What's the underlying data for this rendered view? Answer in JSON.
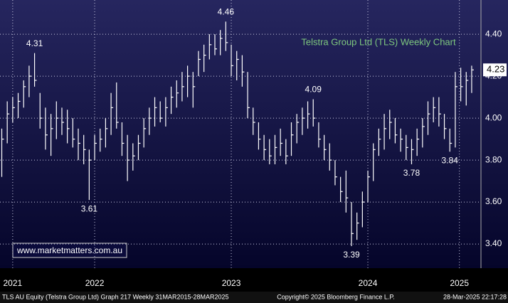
{
  "chart_data": {
    "type": "hlc",
    "title": "Telstra Group Ltd (TLS) Weekly Chart",
    "watermark": "www.marketmatters.com.au",
    "footer": [
      "TLS AU Equity (Telstra Group Ltd) Graph 217  Weekly 31MAR2015-28MAR2025",
      "Copyright© 2025 Bloomberg Finance L.P.",
      "28-Mar-2025 22:17:28"
    ],
    "x": [
      2021.82,
      2021.86,
      2021.9,
      2021.94,
      2021.98,
      2022.02,
      2022.06,
      2022.1,
      2022.14,
      2022.18,
      2022.22,
      2022.26,
      2022.3,
      2022.34,
      2022.38,
      2022.42,
      2022.46,
      2022.5,
      2022.54,
      2022.58,
      2022.62,
      2022.66,
      2022.7,
      2022.74,
      2022.78,
      2022.82,
      2022.86,
      2022.9,
      2022.94,
      2022.98,
      2023.02,
      2023.06,
      2023.1,
      2023.14,
      2023.18,
      2023.22,
      2023.26,
      2023.3,
      2023.34,
      2023.38,
      2023.42,
      2023.46,
      2023.5,
      2023.54,
      2023.58,
      2023.62,
      2023.66,
      2023.7,
      2023.74,
      2023.78,
      2023.82,
      2023.86,
      2023.9,
      2023.94,
      2023.98,
      2024.02,
      2024.06,
      2024.1,
      2024.14,
      2024.18,
      2024.22,
      2024.26,
      2024.3,
      2024.34,
      2024.38,
      2024.42,
      2024.46,
      2024.5,
      2024.54,
      2024.58,
      2024.62,
      2024.66,
      2024.7,
      2024.74,
      2024.78,
      2024.82,
      2024.86,
      2024.9,
      2024.94,
      2024.98,
      2025.02,
      2025.06,
      2025.1,
      2025.14,
      2025.18,
      2025.22,
      2025.26
    ],
    "high": [
      3.95,
      4.08,
      4.1,
      4.12,
      4.18,
      4.25,
      4.31,
      4.12,
      4.05,
      4.02,
      4.08,
      4.05,
      4.04,
      4.0,
      3.95,
      3.92,
      3.85,
      3.92,
      3.95,
      4.0,
      4.12,
      4.17,
      3.98,
      3.92,
      3.88,
      3.92,
      4.0,
      4.05,
      4.1,
      4.08,
      4.1,
      4.15,
      4.18,
      4.22,
      4.25,
      4.22,
      4.32,
      4.35,
      4.4,
      4.4,
      4.42,
      4.46,
      4.35,
      4.32,
      4.3,
      4.22,
      4.05,
      3.98,
      3.92,
      3.9,
      3.92,
      3.95,
      3.9,
      3.98,
      4.02,
      4.05,
      4.08,
      4.09,
      3.98,
      3.92,
      3.88,
      3.8,
      3.72,
      3.75,
      3.6,
      3.55,
      3.65,
      3.75,
      3.88,
      3.95,
      4.02,
      4.04,
      4.0,
      3.95,
      3.92,
      3.9,
      3.95,
      4.0,
      4.08,
      4.1,
      4.1,
      4.02,
      3.95,
      4.22,
      4.24,
      4.22,
      4.25
    ],
    "low": [
      3.72,
      3.88,
      3.98,
      4.0,
      4.05,
      4.1,
      4.15,
      3.95,
      3.85,
      3.82,
      3.9,
      3.92,
      3.88,
      3.86,
      3.8,
      3.78,
      3.61,
      3.8,
      3.84,
      3.86,
      3.92,
      3.95,
      3.82,
      3.7,
      3.75,
      3.8,
      3.86,
      3.92,
      3.96,
      3.98,
      3.96,
      4.02,
      4.05,
      4.08,
      4.1,
      4.05,
      4.2,
      4.22,
      4.28,
      4.3,
      4.3,
      4.32,
      4.2,
      4.18,
      4.15,
      4.0,
      3.92,
      3.85,
      3.8,
      3.78,
      3.78,
      3.82,
      3.78,
      3.82,
      3.88,
      3.92,
      3.95,
      3.96,
      3.86,
      3.8,
      3.75,
      3.68,
      3.6,
      3.55,
      3.39,
      3.42,
      3.48,
      3.6,
      3.7,
      3.82,
      3.85,
      3.9,
      3.88,
      3.84,
      3.8,
      3.78,
      3.82,
      3.86,
      3.92,
      3.98,
      3.96,
      3.9,
      3.84,
      3.86,
      4.08,
      4.06,
      4.12
    ],
    "close": [
      3.9,
      4.02,
      4.05,
      4.08,
      4.15,
      4.2,
      4.18,
      4.0,
      3.92,
      3.95,
      4.0,
      3.98,
      3.95,
      3.9,
      3.88,
      3.85,
      3.8,
      3.88,
      3.9,
      3.95,
      4.05,
      3.98,
      3.88,
      3.8,
      3.82,
      3.88,
      3.95,
      4.0,
      4.05,
      4.0,
      4.05,
      4.1,
      4.12,
      4.15,
      4.2,
      4.15,
      4.28,
      4.3,
      4.35,
      4.33,
      4.38,
      4.36,
      4.25,
      4.28,
      4.22,
      4.05,
      3.98,
      3.9,
      3.85,
      3.82,
      3.86,
      3.88,
      3.82,
      3.92,
      3.98,
      4.0,
      4.02,
      4.0,
      3.9,
      3.85,
      3.8,
      3.72,
      3.65,
      3.62,
      3.45,
      3.5,
      3.6,
      3.72,
      3.85,
      3.9,
      3.95,
      3.98,
      3.92,
      3.9,
      3.86,
      3.85,
      3.9,
      3.96,
      4.02,
      4.05,
      4.02,
      3.95,
      3.88,
      4.15,
      4.15,
      4.18,
      4.23
    ],
    "color": "#ffffff",
    "last_price": 4.23,
    "annotations": [
      {
        "x": 2022.06,
        "value": 4.31,
        "position": "above"
      },
      {
        "x": 2022.46,
        "value": 3.61,
        "position": "below"
      },
      {
        "x": 2023.46,
        "value": 4.46,
        "position": "above"
      },
      {
        "x": 2024.1,
        "value": 4.09,
        "position": "above"
      },
      {
        "x": 2024.38,
        "value": 3.39,
        "position": "below"
      },
      {
        "x": 2024.82,
        "value": 3.78,
        "position": "below"
      },
      {
        "x": 2025.1,
        "value": 3.84,
        "position": "below"
      }
    ],
    "xlim": [
      2021.807,
      2025.328
    ],
    "xticks": [
      {
        "value": 2021.9,
        "label": "2021"
      },
      {
        "value": 2022.5,
        "label": "2022"
      },
      {
        "value": 2023.5,
        "label": "2023"
      },
      {
        "value": 2024.5,
        "label": "2024"
      },
      {
        "value": 2025.17,
        "label": "2025"
      }
    ],
    "ylim": [
      3.285,
      4.563
    ],
    "yticks": [
      {
        "value": 3.4,
        "label": "3.40"
      },
      {
        "value": 3.6,
        "label": "3.60"
      },
      {
        "value": 3.8,
        "label": "3.80"
      },
      {
        "value": 4.0,
        "label": "4.00"
      },
      {
        "value": 4.2,
        "label": "4.20"
      },
      {
        "value": 4.4,
        "label": "4.40"
      }
    ],
    "grid": true
  }
}
